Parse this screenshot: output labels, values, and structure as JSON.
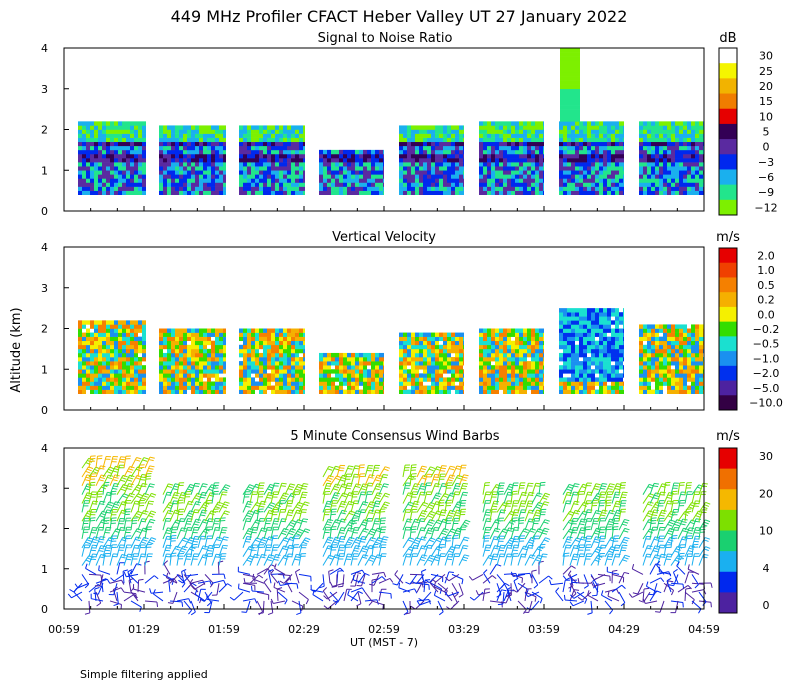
{
  "figure": {
    "title": "449 MHz Profiler CFACT Heber Valley UT 27 January 2022",
    "ylabel": "Altitude (km)",
    "xlabel": "UT  (MST - 7)",
    "footer": "Simple filtering applied"
  },
  "chart_data": [
    {
      "type": "heatmap",
      "title": "Signal to Noise Ratio",
      "xlim": [
        "00:59",
        "04:59"
      ],
      "ylim": [
        0,
        4
      ],
      "yticks": [
        "0",
        "1",
        "2",
        "3",
        "4"
      ],
      "colorbar": {
        "unit": "dB",
        "levels": [
          "30",
          "25",
          "20",
          "15",
          "10",
          "5",
          "0",
          "−3",
          "−6",
          "−9",
          "−12"
        ],
        "colors": [
          "#ffffff",
          "#f5f500",
          "#f2b300",
          "#f07d00",
          "#e60000",
          "#330055",
          "#5a2aa0",
          "#0028ee",
          "#1ab0ee",
          "#22e58c",
          "#7df000"
        ]
      }
    },
    {
      "type": "heatmap",
      "title": "Vertical Velocity",
      "xlim": [
        "00:59",
        "04:59"
      ],
      "ylim": [
        0,
        4
      ],
      "yticks": [
        "0",
        "1",
        "2",
        "3",
        "4"
      ],
      "colorbar": {
        "unit": "m/s",
        "levels": [
          "2.0",
          "1.0",
          "0.5",
          "0.2",
          "0.0",
          "−0.2",
          "−0.5",
          "−1.0",
          "−2.0",
          "−5.0",
          "−10.0"
        ],
        "colors": [
          "#e60000",
          "#f04000",
          "#f58000",
          "#f5b000",
          "#f5f000",
          "#33dd00",
          "#1ae0d0",
          "#1a90f0",
          "#0030ee",
          "#4d22a0",
          "#330044"
        ]
      }
    },
    {
      "type": "scatter",
      "title": "5 Minute Consensus Wind Barbs",
      "xlim": [
        "00:59",
        "04:59"
      ],
      "ylim": [
        0,
        4
      ],
      "yticks": [
        "0",
        "1",
        "2",
        "3",
        "4"
      ],
      "xticks": [
        "00:59",
        "01:29",
        "01:59",
        "02:29",
        "02:59",
        "03:29",
        "03:59",
        "04:29",
        "04:59"
      ],
      "colorbar": {
        "unit": "m/s",
        "levels": [
          "30",
          "20",
          "10",
          "4",
          "0"
        ],
        "colors": [
          "#e60000",
          "#f07000",
          "#f5b800",
          "#7de000",
          "#1ad070",
          "#1ab0f0",
          "#0028ee",
          "#4d22a0"
        ]
      }
    }
  ]
}
